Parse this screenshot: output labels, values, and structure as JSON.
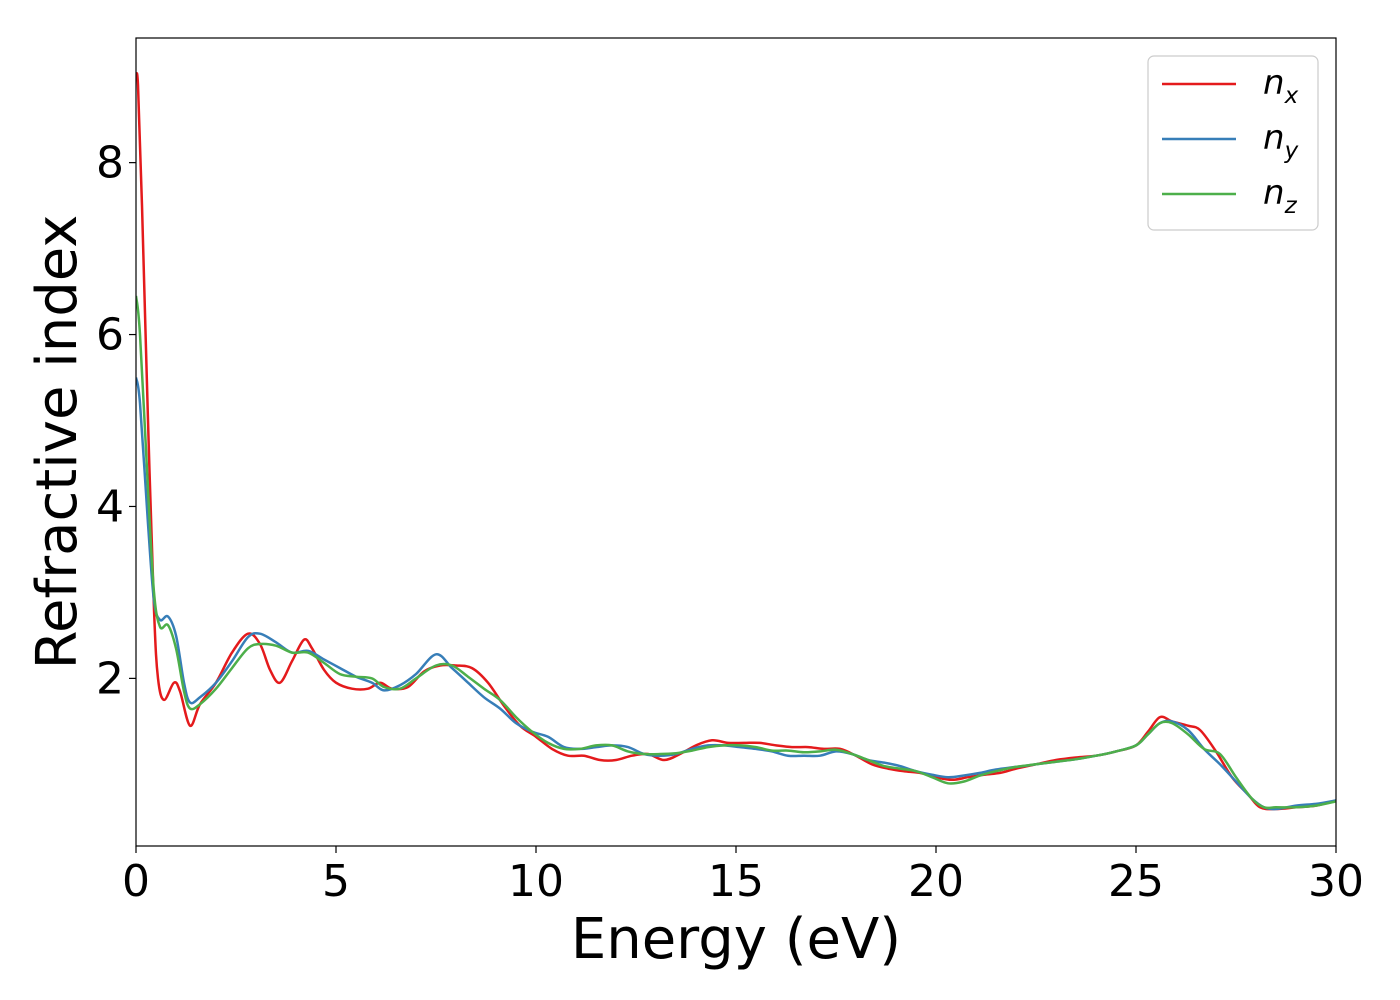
{
  "chart_data": {
    "type": "line",
    "xlabel": "Energy (eV)",
    "ylabel": "Refractive index",
    "xlim": [
      0,
      30
    ],
    "ylim": [
      0.05,
      9.45
    ],
    "grid": false,
    "legend_position": "top-right",
    "x_ticks": [
      {
        "value": 0,
        "label": "0"
      },
      {
        "value": 5,
        "label": "5"
      },
      {
        "value": 10,
        "label": "10"
      },
      {
        "value": 15,
        "label": "15"
      },
      {
        "value": 20,
        "label": "20"
      },
      {
        "value": 25,
        "label": "25"
      },
      {
        "value": 30,
        "label": "30"
      }
    ],
    "y_ticks": [
      {
        "value": 2,
        "label": "2"
      },
      {
        "value": 4,
        "label": "4"
      },
      {
        "value": 6,
        "label": "6"
      },
      {
        "value": 8,
        "label": "8"
      }
    ],
    "series": [
      {
        "name": "n",
        "subscript": "x",
        "color": "#e41a1c",
        "points": [
          [
            0,
            9.0
          ],
          [
            0.05,
            8.9
          ],
          [
            0.15,
            7.5
          ],
          [
            0.3,
            5.0
          ],
          [
            0.45,
            2.8
          ],
          [
            0.55,
            2.0
          ],
          [
            0.7,
            1.75
          ],
          [
            0.95,
            1.95
          ],
          [
            1.1,
            1.85
          ],
          [
            1.35,
            1.45
          ],
          [
            1.6,
            1.7
          ],
          [
            2.0,
            1.95
          ],
          [
            2.4,
            2.3
          ],
          [
            2.8,
            2.52
          ],
          [
            3.1,
            2.4
          ],
          [
            3.35,
            2.1
          ],
          [
            3.6,
            1.95
          ],
          [
            3.9,
            2.2
          ],
          [
            4.2,
            2.45
          ],
          [
            4.4,
            2.35
          ],
          [
            4.7,
            2.1
          ],
          [
            5.0,
            1.95
          ],
          [
            5.4,
            1.88
          ],
          [
            5.8,
            1.88
          ],
          [
            6.1,
            1.95
          ],
          [
            6.4,
            1.88
          ],
          [
            6.8,
            1.9
          ],
          [
            7.2,
            2.08
          ],
          [
            7.6,
            2.15
          ],
          [
            8.0,
            2.15
          ],
          [
            8.4,
            2.12
          ],
          [
            8.8,
            1.95
          ],
          [
            9.2,
            1.68
          ],
          [
            9.6,
            1.45
          ],
          [
            10.0,
            1.32
          ],
          [
            10.4,
            1.18
          ],
          [
            10.8,
            1.1
          ],
          [
            11.2,
            1.1
          ],
          [
            11.6,
            1.05
          ],
          [
            12.0,
            1.05
          ],
          [
            12.4,
            1.1
          ],
          [
            12.8,
            1.12
          ],
          [
            13.2,
            1.05
          ],
          [
            13.6,
            1.12
          ],
          [
            14.0,
            1.22
          ],
          [
            14.4,
            1.28
          ],
          [
            14.8,
            1.25
          ],
          [
            15.2,
            1.25
          ],
          [
            15.6,
            1.25
          ],
          [
            16.0,
            1.22
          ],
          [
            16.4,
            1.2
          ],
          [
            16.8,
            1.2
          ],
          [
            17.2,
            1.18
          ],
          [
            17.6,
            1.18
          ],
          [
            18.0,
            1.1
          ],
          [
            18.4,
            1.0
          ],
          [
            18.8,
            0.95
          ],
          [
            19.2,
            0.92
          ],
          [
            19.6,
            0.9
          ],
          [
            20.0,
            0.85
          ],
          [
            20.4,
            0.82
          ],
          [
            20.8,
            0.85
          ],
          [
            21.2,
            0.88
          ],
          [
            21.6,
            0.9
          ],
          [
            22.0,
            0.95
          ],
          [
            22.5,
            1.0
          ],
          [
            23.0,
            1.05
          ],
          [
            23.5,
            1.08
          ],
          [
            24.0,
            1.1
          ],
          [
            24.5,
            1.15
          ],
          [
            25.0,
            1.22
          ],
          [
            25.3,
            1.38
          ],
          [
            25.6,
            1.55
          ],
          [
            25.9,
            1.5
          ],
          [
            26.3,
            1.45
          ],
          [
            26.6,
            1.4
          ],
          [
            27.0,
            1.15
          ],
          [
            27.4,
            0.85
          ],
          [
            27.8,
            0.65
          ],
          [
            28.1,
            0.5
          ],
          [
            28.5,
            0.48
          ],
          [
            29.0,
            0.5
          ],
          [
            29.5,
            0.52
          ],
          [
            30.0,
            0.58
          ]
        ]
      },
      {
        "name": "n",
        "subscript": "y",
        "color": "#377eb8",
        "points": [
          [
            0,
            5.5
          ],
          [
            0.1,
            5.2
          ],
          [
            0.3,
            3.8
          ],
          [
            0.45,
            2.9
          ],
          [
            0.6,
            2.68
          ],
          [
            0.8,
            2.72
          ],
          [
            1.0,
            2.5
          ],
          [
            1.2,
            1.95
          ],
          [
            1.35,
            1.72
          ],
          [
            1.6,
            1.78
          ],
          [
            2.0,
            1.95
          ],
          [
            2.4,
            2.2
          ],
          [
            2.8,
            2.48
          ],
          [
            3.1,
            2.52
          ],
          [
            3.5,
            2.42
          ],
          [
            3.9,
            2.3
          ],
          [
            4.3,
            2.32
          ],
          [
            4.7,
            2.22
          ],
          [
            5.1,
            2.12
          ],
          [
            5.5,
            2.02
          ],
          [
            5.9,
            1.95
          ],
          [
            6.2,
            1.86
          ],
          [
            6.6,
            1.92
          ],
          [
            7.0,
            2.05
          ],
          [
            7.5,
            2.28
          ],
          [
            7.9,
            2.12
          ],
          [
            8.3,
            1.95
          ],
          [
            8.7,
            1.78
          ],
          [
            9.1,
            1.65
          ],
          [
            9.5,
            1.48
          ],
          [
            9.9,
            1.38
          ],
          [
            10.3,
            1.32
          ],
          [
            10.7,
            1.2
          ],
          [
            11.1,
            1.18
          ],
          [
            11.5,
            1.2
          ],
          [
            11.9,
            1.22
          ],
          [
            12.3,
            1.2
          ],
          [
            12.7,
            1.12
          ],
          [
            13.1,
            1.1
          ],
          [
            13.5,
            1.12
          ],
          [
            13.9,
            1.18
          ],
          [
            14.3,
            1.22
          ],
          [
            14.7,
            1.22
          ],
          [
            15.1,
            1.2
          ],
          [
            15.5,
            1.18
          ],
          [
            15.9,
            1.15
          ],
          [
            16.3,
            1.1
          ],
          [
            16.7,
            1.1
          ],
          [
            17.1,
            1.1
          ],
          [
            17.5,
            1.15
          ],
          [
            17.9,
            1.12
          ],
          [
            18.3,
            1.05
          ],
          [
            18.7,
            1.02
          ],
          [
            19.1,
            0.98
          ],
          [
            19.5,
            0.92
          ],
          [
            19.9,
            0.88
          ],
          [
            20.3,
            0.85
          ],
          [
            20.7,
            0.87
          ],
          [
            21.1,
            0.9
          ],
          [
            21.5,
            0.94
          ],
          [
            22.0,
            0.97
          ],
          [
            22.5,
            1.0
          ],
          [
            23.0,
            1.03
          ],
          [
            23.5,
            1.06
          ],
          [
            24.0,
            1.1
          ],
          [
            24.5,
            1.15
          ],
          [
            25.0,
            1.22
          ],
          [
            25.3,
            1.35
          ],
          [
            25.6,
            1.48
          ],
          [
            25.9,
            1.5
          ],
          [
            26.3,
            1.4
          ],
          [
            26.7,
            1.18
          ],
          [
            27.1,
            1.0
          ],
          [
            27.5,
            0.8
          ],
          [
            27.9,
            0.6
          ],
          [
            28.2,
            0.5
          ],
          [
            28.5,
            0.48
          ],
          [
            29.0,
            0.52
          ],
          [
            29.5,
            0.54
          ],
          [
            30.0,
            0.58
          ]
        ]
      },
      {
        "name": "n",
        "subscript": "z",
        "color": "#4daf4a",
        "points": [
          [
            0,
            6.45
          ],
          [
            0.1,
            6.0
          ],
          [
            0.3,
            4.2
          ],
          [
            0.45,
            3.0
          ],
          [
            0.6,
            2.6
          ],
          [
            0.8,
            2.62
          ],
          [
            1.0,
            2.35
          ],
          [
            1.2,
            1.85
          ],
          [
            1.35,
            1.65
          ],
          [
            1.6,
            1.7
          ],
          [
            2.0,
            1.88
          ],
          [
            2.4,
            2.12
          ],
          [
            2.8,
            2.35
          ],
          [
            3.1,
            2.4
          ],
          [
            3.5,
            2.38
          ],
          [
            3.9,
            2.3
          ],
          [
            4.3,
            2.3
          ],
          [
            4.7,
            2.18
          ],
          [
            5.1,
            2.05
          ],
          [
            5.5,
            2.02
          ],
          [
            5.9,
            2.0
          ],
          [
            6.2,
            1.9
          ],
          [
            6.6,
            1.88
          ],
          [
            7.0,
            2.0
          ],
          [
            7.5,
            2.15
          ],
          [
            7.9,
            2.15
          ],
          [
            8.3,
            2.02
          ],
          [
            8.7,
            1.88
          ],
          [
            9.1,
            1.75
          ],
          [
            9.5,
            1.55
          ],
          [
            9.9,
            1.38
          ],
          [
            10.3,
            1.25
          ],
          [
            10.7,
            1.18
          ],
          [
            11.1,
            1.18
          ],
          [
            11.5,
            1.22
          ],
          [
            11.9,
            1.22
          ],
          [
            12.3,
            1.15
          ],
          [
            12.7,
            1.12
          ],
          [
            13.1,
            1.12
          ],
          [
            13.5,
            1.13
          ],
          [
            13.9,
            1.16
          ],
          [
            14.3,
            1.2
          ],
          [
            14.7,
            1.22
          ],
          [
            15.1,
            1.22
          ],
          [
            15.5,
            1.2
          ],
          [
            15.9,
            1.16
          ],
          [
            16.3,
            1.16
          ],
          [
            16.7,
            1.14
          ],
          [
            17.1,
            1.15
          ],
          [
            17.5,
            1.17
          ],
          [
            17.9,
            1.12
          ],
          [
            18.3,
            1.05
          ],
          [
            18.7,
            0.98
          ],
          [
            19.1,
            0.95
          ],
          [
            19.5,
            0.92
          ],
          [
            19.9,
            0.85
          ],
          [
            20.3,
            0.78
          ],
          [
            20.7,
            0.8
          ],
          [
            21.1,
            0.87
          ],
          [
            21.5,
            0.92
          ],
          [
            22.0,
            0.97
          ],
          [
            22.5,
            1.0
          ],
          [
            23.0,
            1.03
          ],
          [
            23.5,
            1.06
          ],
          [
            24.0,
            1.1
          ],
          [
            24.5,
            1.15
          ],
          [
            25.0,
            1.22
          ],
          [
            25.3,
            1.35
          ],
          [
            25.6,
            1.48
          ],
          [
            25.9,
            1.48
          ],
          [
            26.3,
            1.35
          ],
          [
            26.7,
            1.18
          ],
          [
            27.1,
            1.12
          ],
          [
            27.5,
            0.85
          ],
          [
            27.9,
            0.6
          ],
          [
            28.2,
            0.5
          ],
          [
            28.5,
            0.5
          ],
          [
            29.0,
            0.5
          ],
          [
            29.5,
            0.52
          ],
          [
            30.0,
            0.57
          ]
        ]
      }
    ]
  }
}
